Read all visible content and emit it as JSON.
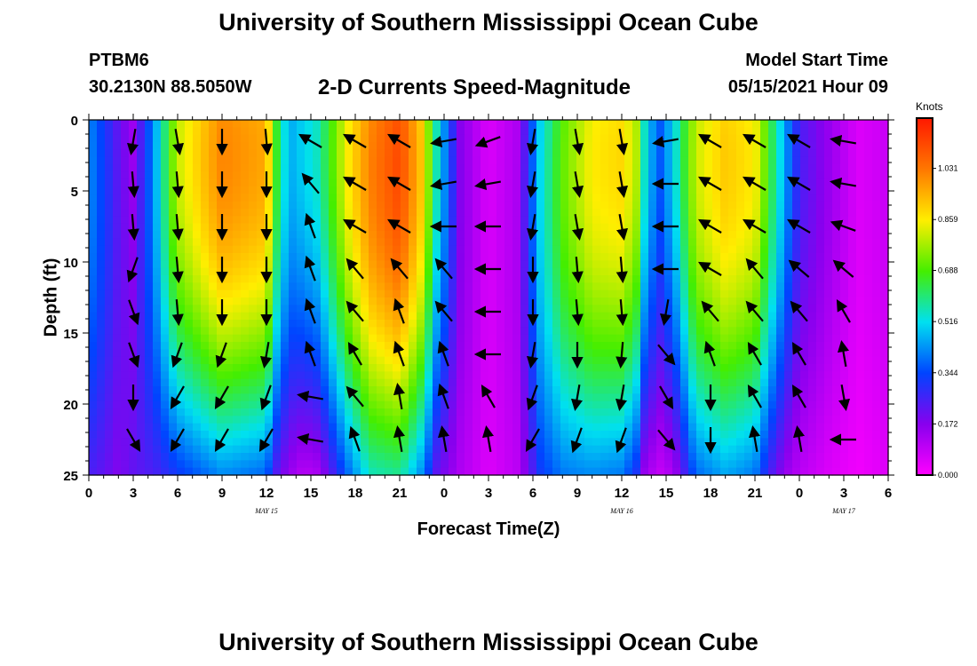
{
  "header": {
    "title": "University of Southern Mississippi Ocean Cube",
    "station": "PTBM6",
    "coordinates": "30.2130N  88.5050W",
    "subtitle": "2-D Currents Speed-Magnitude",
    "model_start_label": "Model Start Time",
    "model_start_value": "05/15/2021 Hour 09"
  },
  "footer": {
    "title": "University of Southern Mississippi Ocean Cube"
  },
  "chart_data": {
    "type": "heatmap",
    "title": "2-D Currents Speed-Magnitude",
    "xlabel": "Forecast Time(Z)",
    "ylabel": "Depth (ft)",
    "x_range_hours": [
      0,
      54
    ],
    "y_range_ft": [
      0,
      25
    ],
    "x_tick_labels": [
      "0",
      "3",
      "6",
      "9",
      "12",
      "15",
      "18",
      "21",
      "0",
      "3",
      "6",
      "9",
      "12",
      "15",
      "18",
      "21",
      "0",
      "3",
      "6"
    ],
    "y_tick_labels": [
      "0",
      "5",
      "10",
      "15",
      "20",
      "25"
    ],
    "date_labels": [
      {
        "text": "MAY 15",
        "hour": 12
      },
      {
        "text": "MAY 16",
        "hour": 36
      },
      {
        "text": "MAY 17",
        "hour": 51
      }
    ],
    "colorbar": {
      "units": "Knots",
      "range": [
        0,
        1.2
      ],
      "tick_labels": [
        "0.000",
        "0.172",
        "0.344",
        "0.516",
        "0.688",
        "0.859",
        "1.031"
      ],
      "tick_values": [
        0,
        0.172,
        0.344,
        0.516,
        0.688,
        0.859,
        1.031
      ]
    },
    "speed_profile": {
      "description": "approximate speed (knots) at time hour t, surface and near-bottom",
      "t_hours": [
        0,
        1,
        2,
        3,
        4.5,
        6,
        9,
        12,
        12.5,
        13.5,
        14.5,
        15.5,
        17.5,
        19,
        21,
        22.5,
        23.5,
        25,
        27,
        29,
        30.5,
        32,
        34,
        36,
        37,
        37.5,
        38.5,
        39.5,
        41,
        43,
        45,
        46,
        47,
        48,
        50,
        52,
        54
      ],
      "surface": [
        0.42,
        0.32,
        0.22,
        0.14,
        0.45,
        0.8,
        1.0,
        0.95,
        0.7,
        0.45,
        0.5,
        0.55,
        0.85,
        1.0,
        1.1,
        0.9,
        0.55,
        0.18,
        0.05,
        0.12,
        0.5,
        0.7,
        0.85,
        0.88,
        0.78,
        0.55,
        0.35,
        0.5,
        0.8,
        0.9,
        0.85,
        0.65,
        0.45,
        0.25,
        0.15,
        0.05,
        0.08
      ],
      "bottom": [
        0.25,
        0.22,
        0.18,
        0.22,
        0.25,
        0.32,
        0.42,
        0.38,
        0.25,
        0.15,
        0.1,
        0.12,
        0.38,
        0.55,
        0.58,
        0.42,
        0.22,
        0.12,
        0.05,
        0.1,
        0.32,
        0.4,
        0.42,
        0.4,
        0.3,
        0.15,
        0.08,
        0.12,
        0.38,
        0.45,
        0.4,
        0.25,
        0.15,
        0.1,
        0.05,
        0.02,
        0.05
      ]
    },
    "arrow_columns_hours": [
      3,
      6,
      9,
      12,
      15,
      18,
      21,
      24,
      27,
      30,
      33,
      36,
      39,
      42,
      45,
      48,
      51
    ],
    "arrow_depths_ft": [
      1.5,
      4.5,
      7.5,
      10.5,
      13.5,
      16.5,
      19.5,
      22.5
    ],
    "arrow_direction_deg": [
      [
        190,
        175,
        175,
        200,
        160,
        160,
        180,
        150
      ],
      [
        170,
        175,
        175,
        175,
        175,
        200,
        210,
        210
      ],
      [
        180,
        180,
        180,
        180,
        180,
        200,
        210,
        210
      ],
      [
        175,
        180,
        180,
        180,
        180,
        190,
        200,
        210
      ],
      [
        300,
        320,
        340,
        340,
        340,
        340,
        280,
        280
      ],
      [
        300,
        300,
        300,
        320,
        320,
        330,
        320,
        340
      ],
      [
        300,
        300,
        300,
        320,
        340,
        340,
        350,
        350
      ],
      [
        260,
        260,
        270,
        320,
        320,
        340,
        340,
        350
      ],
      [
        250,
        260,
        270,
        270,
        270,
        270,
        330,
        350
      ],
      [
        190,
        190,
        190,
        180,
        180,
        190,
        200,
        210
      ],
      [
        170,
        170,
        170,
        175,
        175,
        180,
        190,
        200
      ],
      [
        170,
        170,
        170,
        175,
        175,
        185,
        190,
        200
      ],
      [
        260,
        270,
        270,
        270,
        190,
        140,
        150,
        140
      ],
      [
        300,
        300,
        300,
        300,
        320,
        340,
        180,
        180
      ],
      [
        300,
        300,
        300,
        320,
        320,
        330,
        330,
        350
      ],
      [
        300,
        300,
        300,
        310,
        320,
        330,
        330,
        350
      ],
      [
        280,
        280,
        290,
        310,
        330,
        350,
        170,
        270
      ]
    ]
  }
}
